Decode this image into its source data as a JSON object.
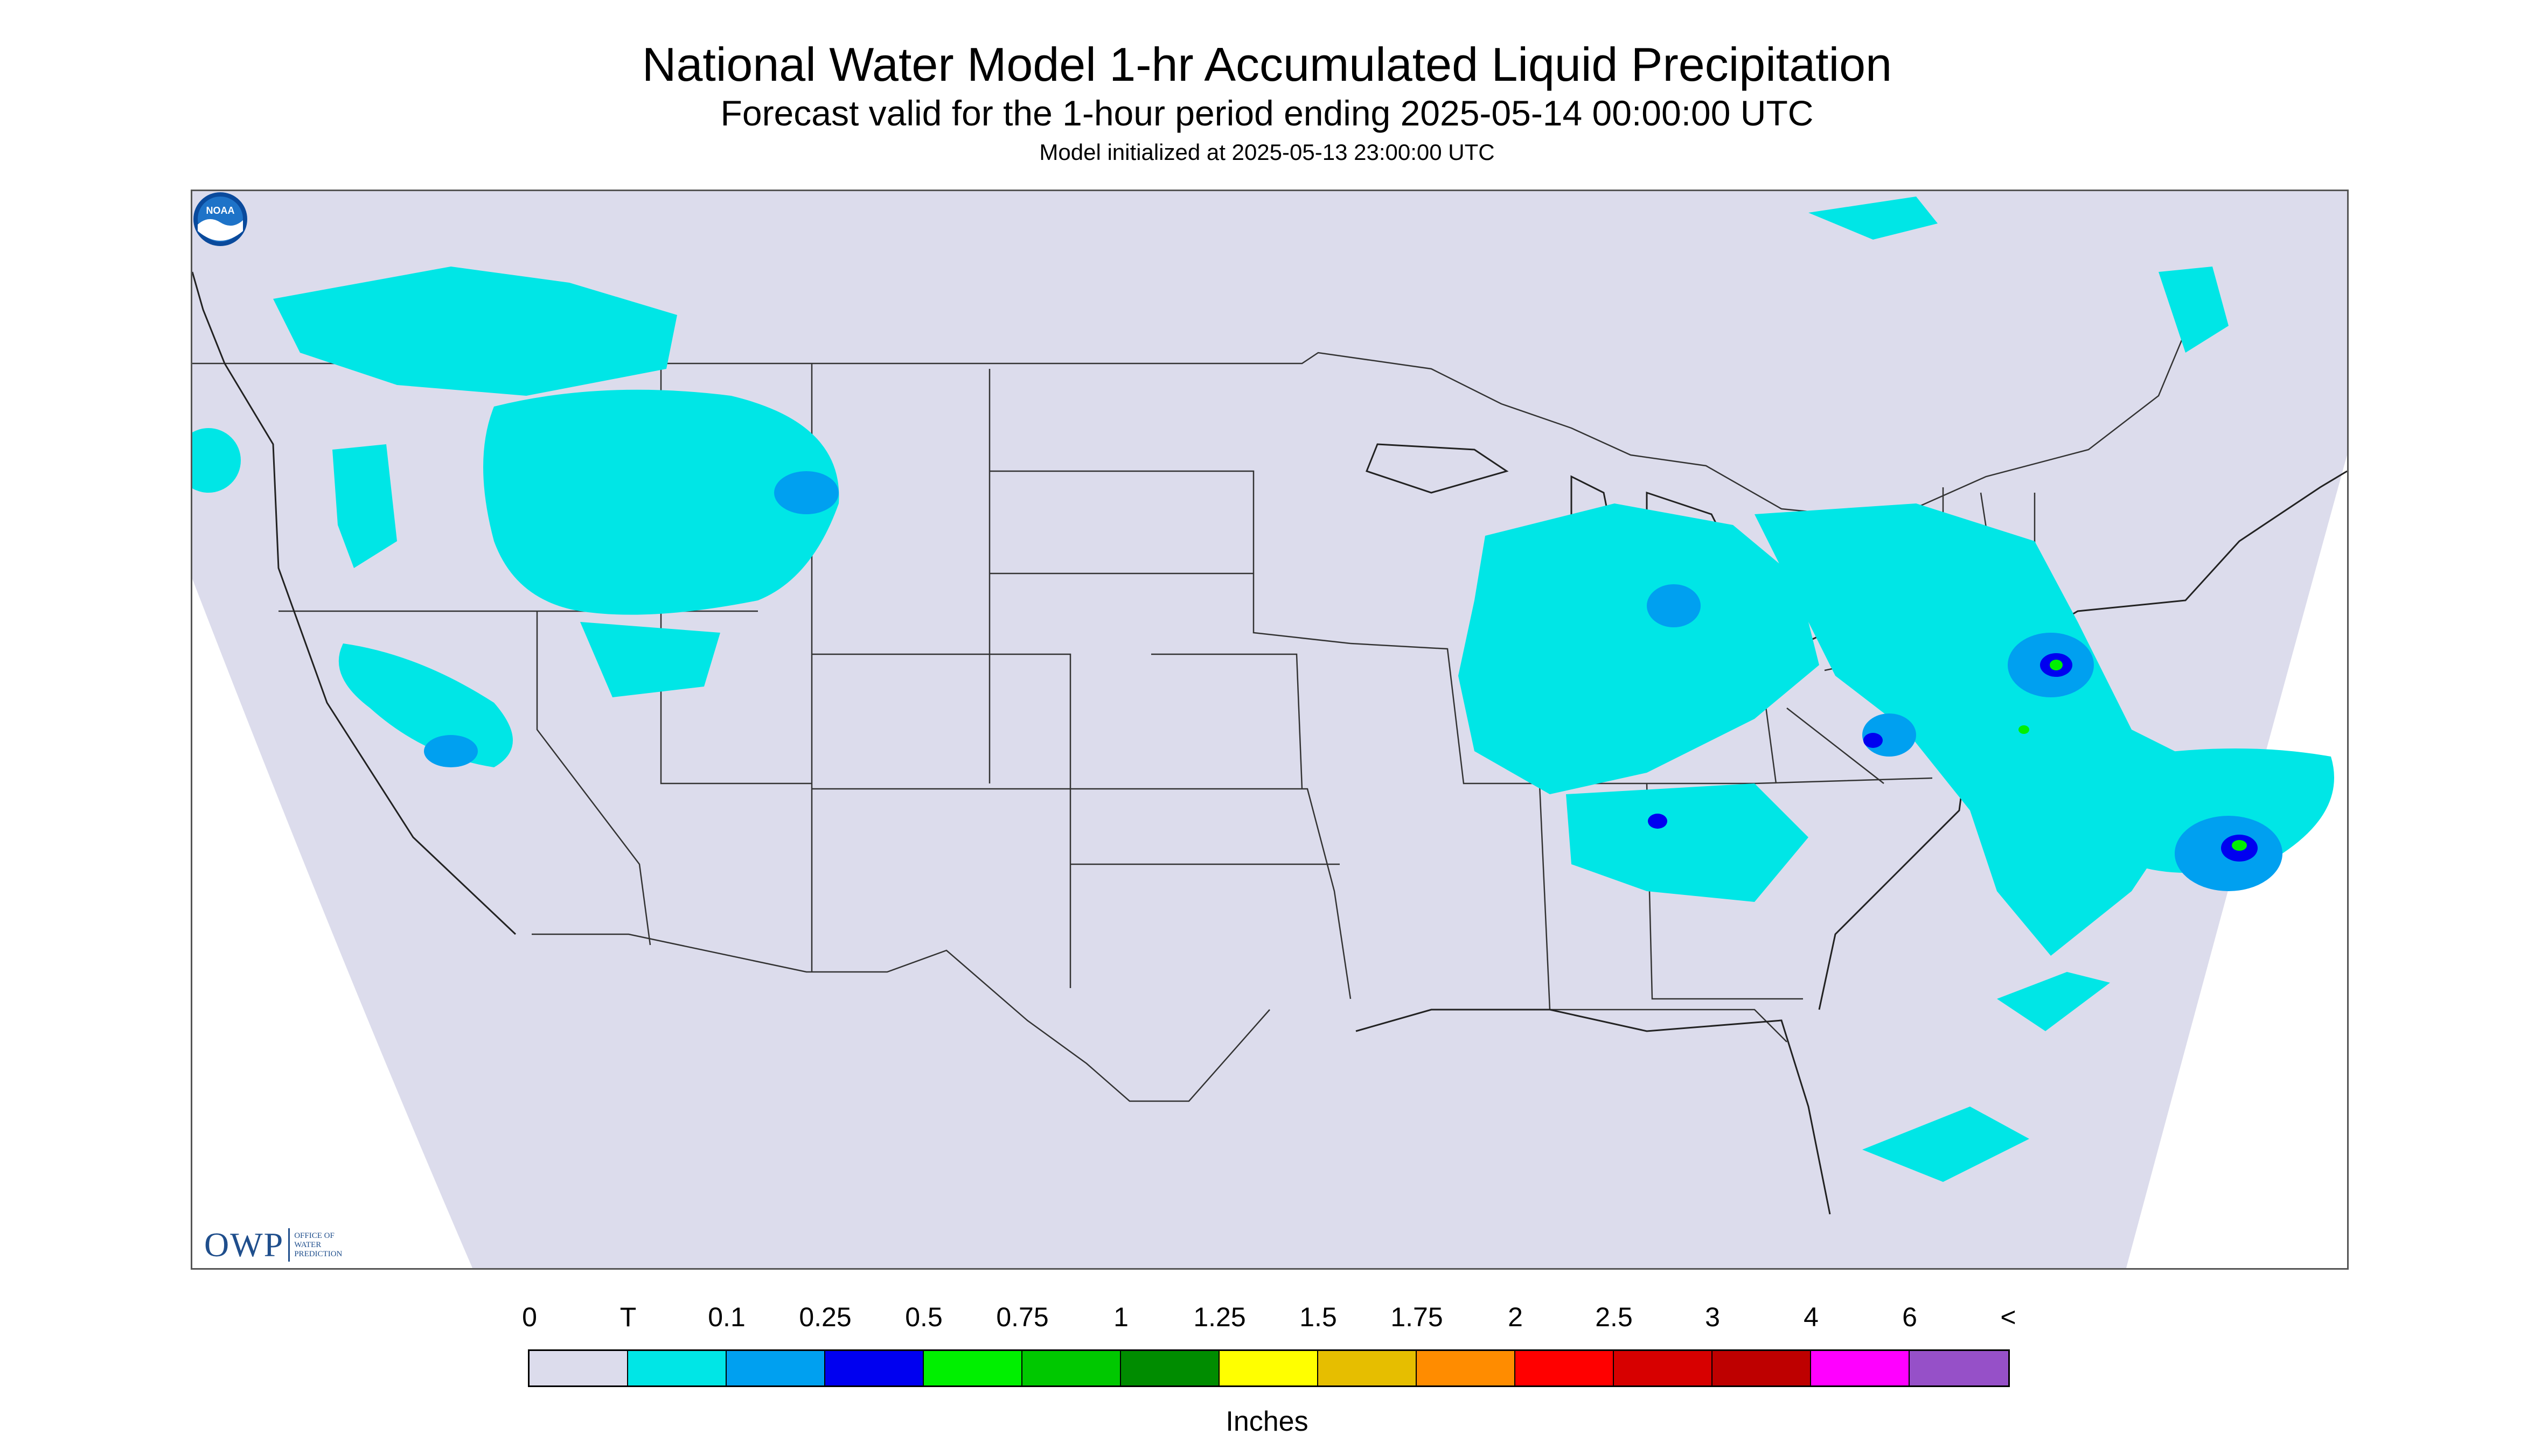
{
  "header": {
    "title": "National Water Model 1-hr Accumulated Liquid Precipitation",
    "subtitle": "Forecast valid for the 1-hour period ending 2025-05-14 00:00:00 UTC",
    "initialized": "Model initialized at 2025-05-13 23:00:00 UTC"
  },
  "map": {
    "domain_color": "#dcdcec",
    "outside_color": "#ffffff",
    "border_color": "#333333",
    "precip_colors": {
      "trace": "#00e6e6",
      "light": "#00a0f0",
      "moderate": "#0000f0",
      "heavy": "#00f000"
    }
  },
  "logos": {
    "owp_text": "OWP",
    "owp_sub_lines": [
      "OFFICE OF",
      "WATER",
      "PREDICTION"
    ],
    "noaa_text": "NOAA"
  },
  "legend": {
    "labels": [
      "0",
      "T",
      "0.1",
      "0.25",
      "0.5",
      "0.75",
      "1",
      "1.25",
      "1.5",
      "1.75",
      "2",
      "2.5",
      "3",
      "4",
      "6",
      "<"
    ],
    "colors": [
      "#dcdcec",
      "#00e6e6",
      "#00a0f0",
      "#0000f0",
      "#00f000",
      "#00c800",
      "#008c00",
      "#ffff00",
      "#e6be00",
      "#ff8c00",
      "#ff0000",
      "#d70000",
      "#be0000",
      "#ff00ff",
      "#9650c8"
    ],
    "units": "Inches"
  }
}
